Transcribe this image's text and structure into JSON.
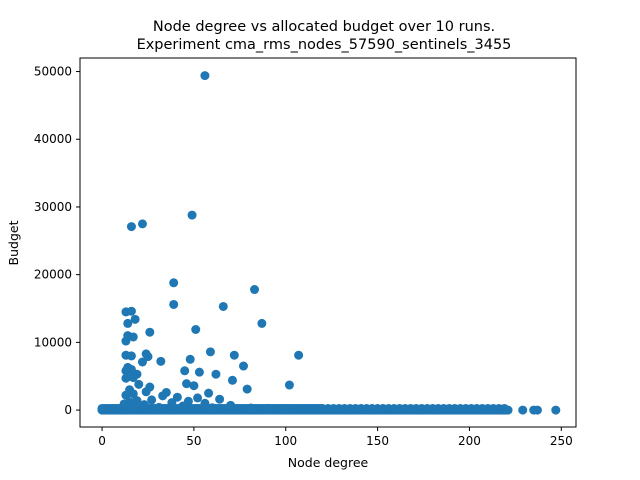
{
  "chart_data": {
    "type": "scatter",
    "title": "Node degree vs allocated budget over 10 runs.",
    "subtitle": "Experiment cma_rms_nodes_57590_sentinels_3455",
    "xlabel": "Node degree",
    "ylabel": "Budget",
    "xlim": [
      -12,
      258
    ],
    "ylim": [
      -2500,
      52000
    ],
    "xticks": [
      0,
      50,
      100,
      150,
      200,
      250
    ],
    "yticks": [
      0,
      10000,
      20000,
      30000,
      40000,
      50000
    ],
    "grid": false,
    "color": "#1f77b4",
    "points": [
      [
        56,
        49400
      ],
      [
        49,
        28800
      ],
      [
        22,
        27500
      ],
      [
        16,
        27100
      ],
      [
        39,
        18800
      ],
      [
        83,
        17800
      ],
      [
        39,
        15600
      ],
      [
        66,
        15300
      ],
      [
        13,
        14500
      ],
      [
        16,
        14600
      ],
      [
        18,
        13400
      ],
      [
        14,
        12800
      ],
      [
        87,
        12800
      ],
      [
        51,
        11900
      ],
      [
        26,
        11500
      ],
      [
        14,
        11000
      ],
      [
        17,
        10800
      ],
      [
        13,
        10200
      ],
      [
        59,
        8600
      ],
      [
        24,
        8300
      ],
      [
        13,
        8100
      ],
      [
        16,
        8000
      ],
      [
        25,
        7900
      ],
      [
        72,
        8100
      ],
      [
        107,
        8100
      ],
      [
        48,
        7500
      ],
      [
        32,
        7200
      ],
      [
        22,
        7100
      ],
      [
        77,
        6500
      ],
      [
        14,
        6300
      ],
      [
        16,
        6000
      ],
      [
        13,
        5800
      ],
      [
        53,
        5600
      ],
      [
        45,
        5800
      ],
      [
        62,
        5300
      ],
      [
        19,
        5300
      ],
      [
        15,
        5000
      ],
      [
        17,
        4800
      ],
      [
        13,
        4700
      ],
      [
        71,
        4400
      ],
      [
        46,
        3900
      ],
      [
        50,
        3600
      ],
      [
        20,
        3800
      ],
      [
        102,
        3700
      ],
      [
        26,
        3400
      ],
      [
        79,
        3100
      ],
      [
        15,
        3000
      ],
      [
        24,
        2700
      ],
      [
        35,
        2600
      ],
      [
        58,
        2500
      ],
      [
        17,
        2400
      ],
      [
        13,
        2200
      ],
      [
        33,
        2100
      ],
      [
        41,
        1900
      ],
      [
        52,
        1800
      ],
      [
        64,
        1600
      ],
      [
        27,
        1500
      ],
      [
        19,
        1400
      ],
      [
        47,
        1300
      ],
      [
        15,
        1200
      ],
      [
        38,
        1100
      ],
      [
        56,
        1000
      ],
      [
        12,
        900
      ],
      [
        23,
        800
      ],
      [
        70,
        700
      ],
      [
        44,
        600
      ],
      [
        18,
        500
      ],
      [
        31,
        400
      ],
      [
        60,
        350
      ],
      [
        81,
        300
      ],
      [
        90,
        250
      ],
      [
        98,
        200
      ]
    ],
    "dense_band": {
      "x_max": 221,
      "y_values": [
        0,
        40,
        90,
        160,
        240
      ],
      "sparse_x": [
        229,
        235,
        237,
        247
      ]
    }
  }
}
